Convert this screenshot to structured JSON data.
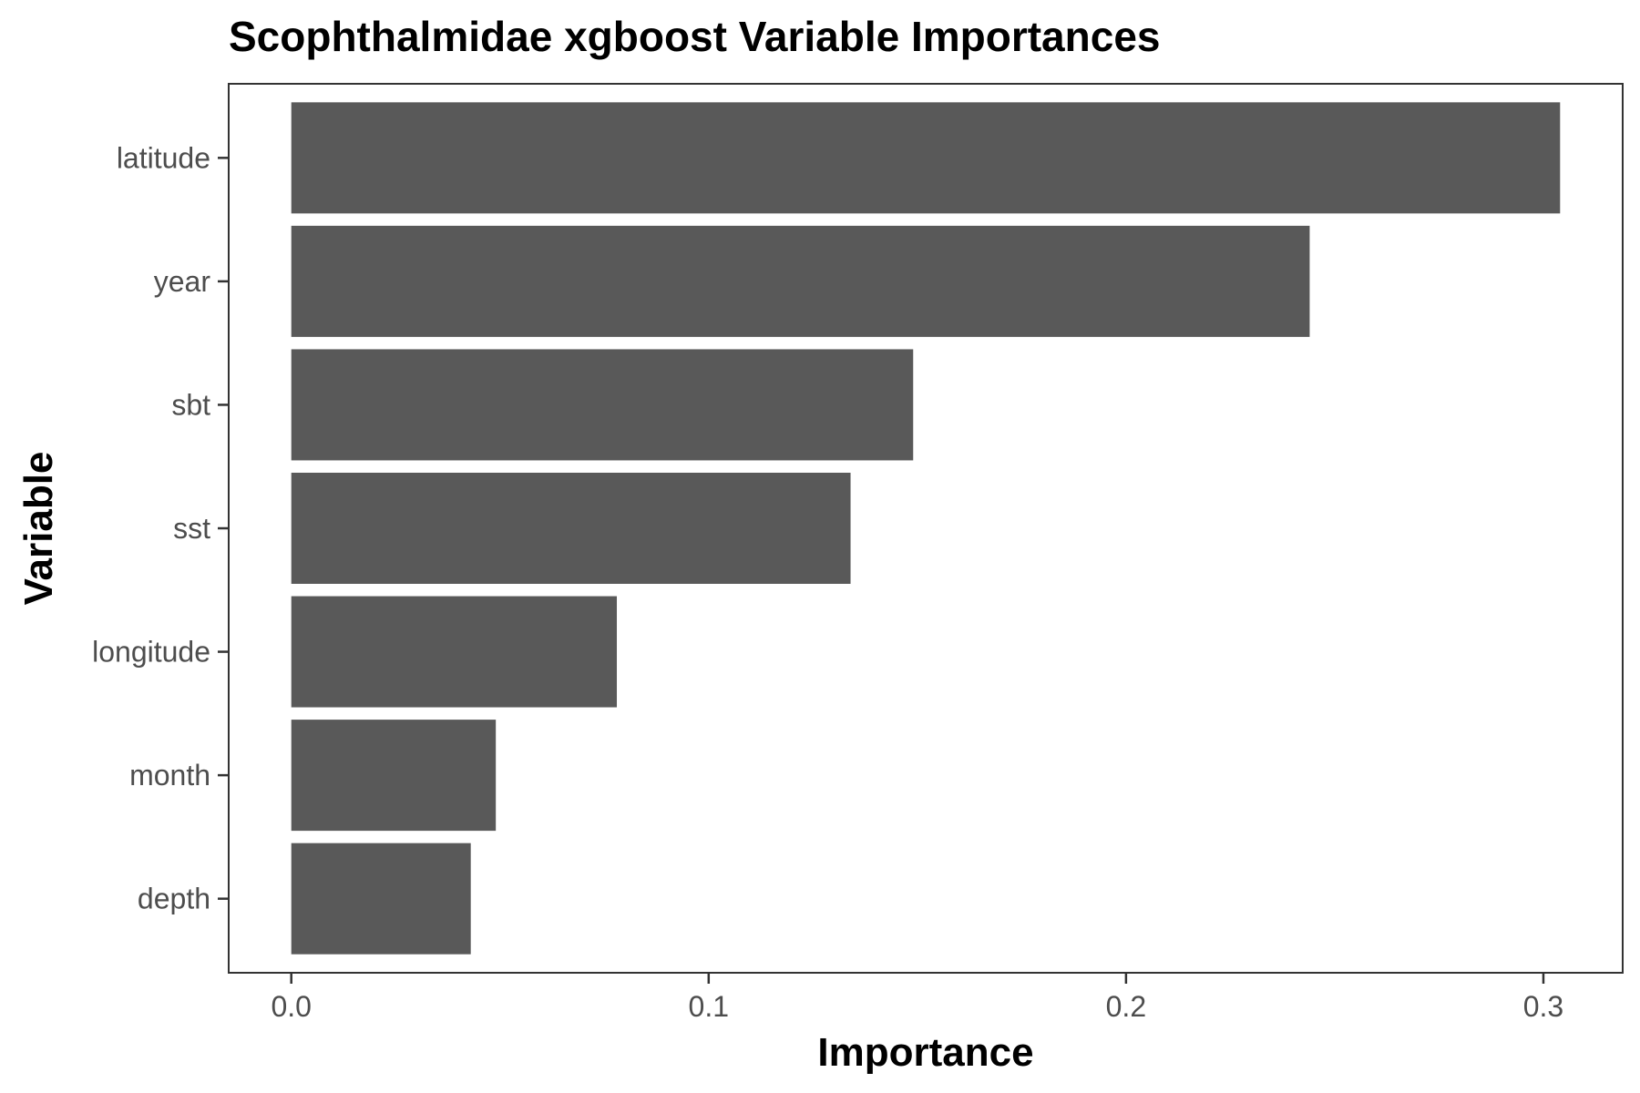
{
  "chart_data": {
    "type": "bar",
    "orientation": "horizontal",
    "title": "Scophthalmidae xgboost Variable Importances",
    "xlabel": "Importance",
    "ylabel": "Variable",
    "categories": [
      "latitude",
      "year",
      "sbt",
      "sst",
      "longitude",
      "month",
      "depth"
    ],
    "values": [
      0.304,
      0.244,
      0.149,
      0.134,
      0.078,
      0.049,
      0.043
    ],
    "xlim": [
      -0.015,
      0.319
    ],
    "xticks": [
      0.0,
      0.1,
      0.2,
      0.3
    ],
    "xtick_labels": [
      "0.0",
      "0.1",
      "0.2",
      "0.3"
    ],
    "grid": false,
    "legend": "none",
    "colors": {
      "bar": "#595959",
      "panel_border": "#333333",
      "tick_text": "#4d4d4d",
      "title_text": "#000000"
    }
  }
}
